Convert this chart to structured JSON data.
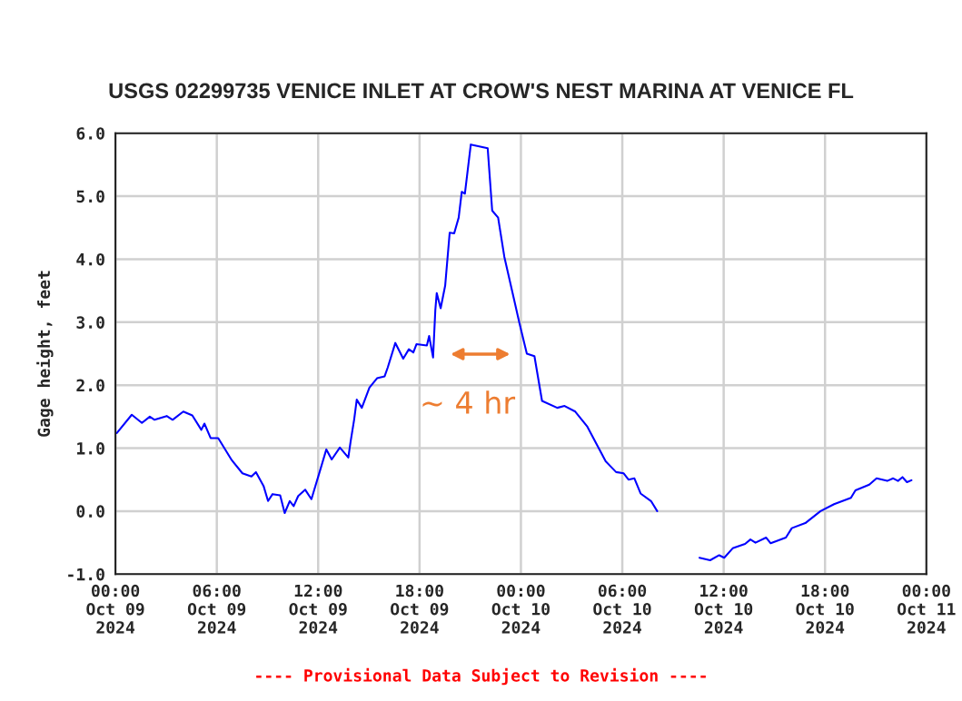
{
  "chart_data": {
    "type": "line",
    "title": "USGS 02299735 VENICE INLET AT CROW'S NEST MARINA AT VENICE FL",
    "ylabel": "Gage height, feet",
    "x": [
      "2024-10-09T00:05",
      "2024-10-09T00:58",
      "2024-10-09T01:34",
      "2024-10-09T02:02",
      "2024-10-09T02:19",
      "2024-10-09T03:02",
      "2024-10-09T03:23",
      "2024-10-09T04:01",
      "2024-10-09T04:33",
      "2024-10-09T05:05",
      "2024-10-09T05:16",
      "2024-10-09T05:38",
      "2024-10-09T06:05",
      "2024-10-09T06:53",
      "2024-10-09T07:31",
      "2024-10-09T08:03",
      "2024-10-09T08:19",
      "2024-10-09T08:46",
      "2024-10-09T09:02",
      "2024-10-09T09:18",
      "2024-10-09T09:45",
      "2024-10-09T10:01",
      "2024-10-09T10:19",
      "2024-10-09T10:33",
      "2024-10-09T10:49",
      "2024-10-09T11:14",
      "2024-10-09T11:36",
      "2024-10-09T12:05",
      "2024-10-09T12:29",
      "2024-10-09T12:48",
      "2024-10-09T13:17",
      "2024-10-09T13:47",
      "2024-10-09T13:55",
      "2024-10-09T14:08",
      "2024-10-09T14:17",
      "2024-10-09T14:35",
      "2024-10-09T15:02",
      "2024-10-09T15:29",
      "2024-10-09T15:56",
      "2024-10-09T16:07",
      "2024-10-09T16:34",
      "2024-10-09T17:02",
      "2024-10-09T17:22",
      "2024-10-09T17:38",
      "2024-10-09T17:49",
      "2024-10-09T18:26",
      "2024-10-09T18:34",
      "2024-10-09T18:48",
      "2024-10-09T18:56",
      "2024-10-09T19:01",
      "2024-10-09T19:15",
      "2024-10-09T19:31",
      "2024-10-09T19:47",
      "2024-10-09T20:03",
      "2024-10-09T20:19",
      "2024-10-09T20:30",
      "2024-10-09T20:41",
      "2024-10-09T21:02",
      "2024-10-09T22:02",
      "2024-10-09T22:18",
      "2024-10-09T22:39",
      "2024-10-09T23:01",
      "2024-10-09T23:33",
      "2024-10-09T23:55",
      "2024-10-10T00:21",
      "2024-10-10T00:48",
      "2024-10-10T01:15",
      "2024-10-10T02:09",
      "2024-10-10T02:35",
      "2024-10-10T03:13",
      "2024-10-10T03:56",
      "2024-10-10T05:01",
      "2024-10-10T05:38",
      "2024-10-10T06:05",
      "2024-10-10T06:22",
      "2024-10-10T06:43",
      "2024-10-10T07:05",
      "2024-10-10T07:42",
      "2024-10-10T08:04",
      "2024-10-10T09:18",
      "2024-10-10T10:34",
      "2024-10-10T11:12",
      "2024-10-10T11:44",
      "2024-10-10T12:02",
      "2024-10-10T12:32",
      "2024-10-10T13:16",
      "2024-10-10T13:35",
      "2024-10-10T13:53",
      "2024-10-10T14:31",
      "2024-10-10T14:47",
      "2024-10-10T15:41",
      "2024-10-10T16:02",
      "2024-10-10T16:50",
      "2024-10-10T17:44",
      "2024-10-10T18:32",
      "2024-10-10T19:32",
      "2024-10-10T19:48",
      "2024-10-10T20:37",
      "2024-10-10T21:03",
      "2024-10-10T21:41",
      "2024-10-10T22:02",
      "2024-10-10T22:19",
      "2024-10-10T22:35",
      "2024-10-10T22:51",
      "2024-10-10T23:07"
    ],
    "series": [
      {
        "color": "#0000ff",
        "values": [
          1.24,
          1.53,
          1.4,
          1.5,
          1.45,
          1.51,
          1.45,
          1.58,
          1.52,
          1.29,
          1.39,
          1.16,
          1.16,
          0.81,
          0.6,
          0.55,
          0.62,
          0.4,
          0.16,
          0.27,
          0.25,
          -0.03,
          0.16,
          0.08,
          0.24,
          0.34,
          0.19,
          0.62,
          0.98,
          0.82,
          1.01,
          0.85,
          1.1,
          1.46,
          1.77,
          1.64,
          1.96,
          2.11,
          2.14,
          2.28,
          2.67,
          2.42,
          2.57,
          2.52,
          2.65,
          2.63,
          2.78,
          2.44,
          3.19,
          3.46,
          3.22,
          3.58,
          4.42,
          4.41,
          4.66,
          5.07,
          5.04,
          5.82,
          5.76,
          4.77,
          4.66,
          4.04,
          3.41,
          2.98,
          2.5,
          2.46,
          1.75,
          1.64,
          1.67,
          1.58,
          1.34,
          0.79,
          0.62,
          0.6,
          0.5,
          0.52,
          0.28,
          0.16,
          0.0,
          null,
          -0.74,
          -0.78,
          -0.7,
          -0.74,
          -0.59,
          -0.52,
          -0.45,
          -0.5,
          -0.42,
          -0.51,
          -0.42,
          -0.27,
          -0.19,
          0.0,
          0.11,
          0.21,
          0.33,
          0.42,
          0.52,
          0.48,
          0.52,
          0.48,
          0.54,
          0.46,
          0.49
        ]
      }
    ],
    "xlim": [
      "2024-10-09T00:00",
      "2024-10-11T00:00"
    ],
    "xticks": [
      {
        "value": "2024-10-09T00:00",
        "label": "00:00\nOct 09\n2024"
      },
      {
        "value": "2024-10-09T06:00",
        "label": "06:00\nOct 09\n2024"
      },
      {
        "value": "2024-10-09T12:00",
        "label": "12:00\nOct 09\n2024"
      },
      {
        "value": "2024-10-09T18:00",
        "label": "18:00\nOct 09\n2024"
      },
      {
        "value": "2024-10-10T00:00",
        "label": "00:00\nOct 10\n2024"
      },
      {
        "value": "2024-10-10T06:00",
        "label": "06:00\nOct 10\n2024"
      },
      {
        "value": "2024-10-10T12:00",
        "label": "12:00\nOct 10\n2024"
      },
      {
        "value": "2024-10-10T18:00",
        "label": "18:00\nOct 10\n2024"
      },
      {
        "value": "2024-10-11T00:00",
        "label": "00:00\nOct 11\n2024"
      }
    ],
    "ylim": [
      -1,
      6
    ],
    "yticks": [
      {
        "value": -1,
        "label": "-1.0"
      },
      {
        "value": 0,
        "label": "0.0"
      },
      {
        "value": 1,
        "label": "1.0"
      },
      {
        "value": 2,
        "label": "2.0"
      },
      {
        "value": 3,
        "label": "3.0"
      },
      {
        "value": 4,
        "label": "4.0"
      },
      {
        "value": 5,
        "label": "5.0"
      },
      {
        "value": 6,
        "label": "6.0"
      }
    ],
    "grid": true,
    "legend": false,
    "marker": "none",
    "line_style": "solid",
    "annotations": [
      "~ 4 hr",
      "---- Provisional Data Subject to Revision ----"
    ]
  }
}
